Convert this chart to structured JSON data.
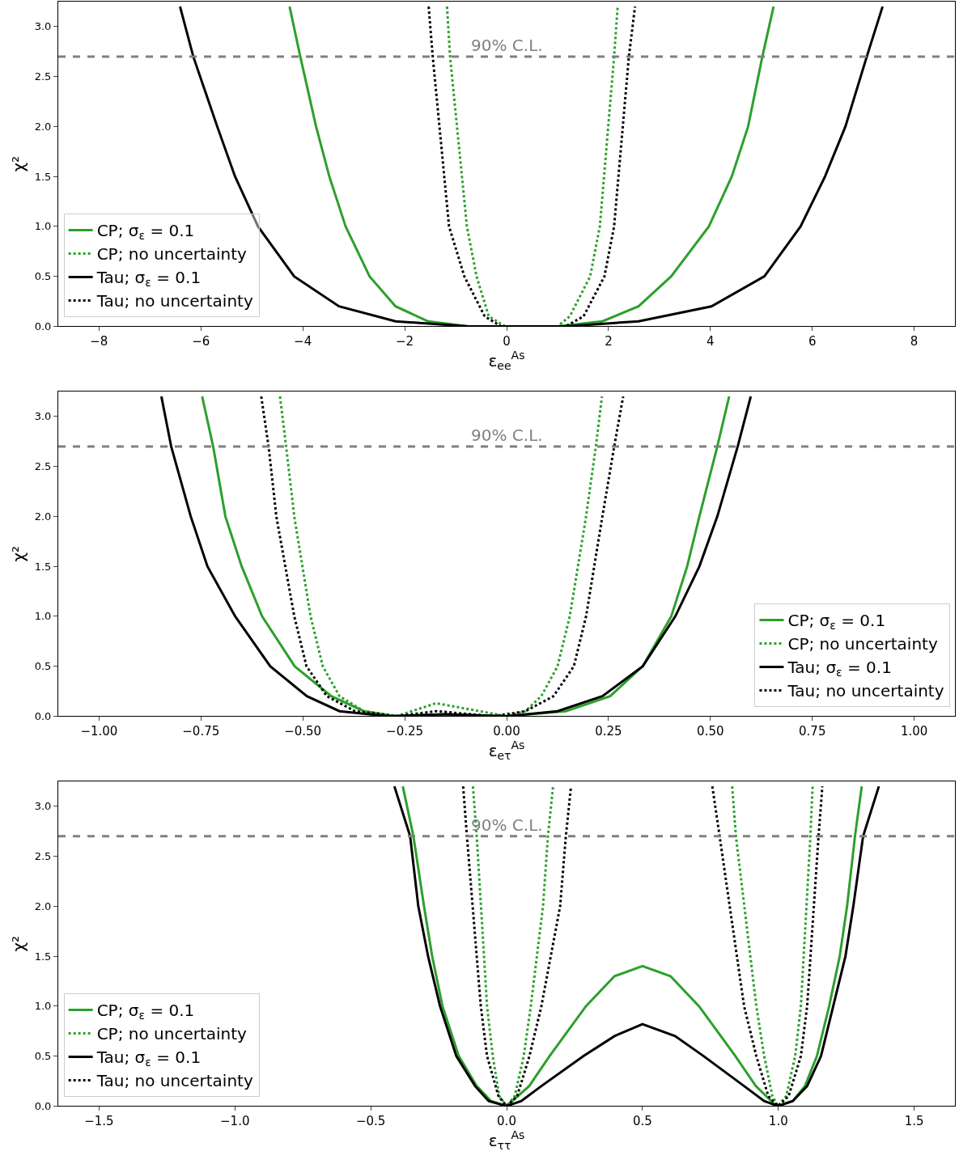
{
  "chart_data": [
    {
      "type": "line",
      "xlabel": "ε$_{ee}$$^{As}$",
      "ylabel": "χ²",
      "xlim": [
        -8.8,
        8.8
      ],
      "ylim": [
        0,
        3.25
      ],
      "xticks": [
        {
          "value": -8,
          "label": "−8"
        },
        {
          "value": -6,
          "label": "−6"
        },
        {
          "value": -4,
          "label": "−4"
        },
        {
          "value": -2,
          "label": "−2"
        },
        0,
        2,
        4,
        6,
        8
      ],
      "yticks": [
        {
          "value": 0,
          "label": "0.0"
        },
        0.5,
        {
          "value": 1,
          "label": "1.0"
        },
        1.5,
        {
          "value": 2,
          "label": "2.0"
        },
        2.5,
        {
          "value": 3,
          "label": "3.0"
        }
      ],
      "legend": "bottom left",
      "ref_lines": [
        {
          "axis": "y",
          "value": 2.7,
          "label": "90% C.L.",
          "color": "#808080",
          "line_style": "dashed"
        }
      ],
      "series": [
        {
          "name": "CP; σ$_{ε}$ = 0.1",
          "color": "#2ca02c",
          "line_style": "solid",
          "x": [
            -4.26,
            -4.05,
            -3.74,
            -3.48,
            -3.16,
            -2.69,
            -2.18,
            -1.54,
            -0.75,
            1.0,
            1.88,
            2.59,
            3.23,
            3.97,
            4.42,
            4.74,
            5.02,
            5.24
          ],
          "values": [
            3.2,
            2.7,
            2.0,
            1.5,
            1.0,
            0.5,
            0.2,
            0.05,
            0,
            0,
            0.05,
            0.2,
            0.5,
            1.0,
            1.5,
            2.0,
            2.7,
            3.2
          ]
        },
        {
          "name": "CP; no uncertainty",
          "color": "#2ca02c",
          "line_style": "dotted",
          "x": [
            -1.17,
            -1.11,
            -0.78,
            -0.59,
            -0.35,
            -0.03,
            1.0,
            1.24,
            1.64,
            1.83,
            2.11,
            2.18
          ],
          "values": [
            3.2,
            2.7,
            1.0,
            0.5,
            0.1,
            0,
            0,
            0.1,
            0.5,
            1.0,
            2.7,
            3.2
          ]
        },
        {
          "name": "Tau; σ$_{ε}$ = 0.1",
          "color": "#000000",
          "line_style": "solid",
          "x": [
            -6.41,
            -6.15,
            -5.68,
            -5.33,
            -4.88,
            -4.17,
            -3.29,
            -2.18,
            -0.75,
            1.16,
            2.59,
            4.02,
            5.06,
            5.77,
            6.25,
            6.65,
            7.07,
            7.38
          ],
          "values": [
            3.2,
            2.7,
            2.0,
            1.5,
            1.0,
            0.5,
            0.2,
            0.05,
            0,
            0,
            0.05,
            0.2,
            0.5,
            1.0,
            1.5,
            2.0,
            2.7,
            3.2
          ]
        },
        {
          "name": "Tau; no uncertainty",
          "color": "#000000",
          "line_style": "dotted",
          "x": [
            -1.53,
            -1.45,
            -1.13,
            -0.83,
            -0.43,
            -0.11,
            1.16,
            1.51,
            1.92,
            2.11,
            2.4,
            2.52
          ],
          "values": [
            3.2,
            2.7,
            1.0,
            0.5,
            0.1,
            0,
            0,
            0.1,
            0.5,
            1.0,
            2.7,
            3.2
          ]
        }
      ]
    },
    {
      "type": "line",
      "xlabel": "ε$_{eτ}$$^{As}$",
      "ylabel": "χ²",
      "xlim": [
        -1.1,
        1.1
      ],
      "ylim": [
        0,
        3.25
      ],
      "xticks": [
        {
          "value": -1,
          "label": "−1.00"
        },
        {
          "value": -0.75,
          "label": "−0.75"
        },
        {
          "value": -0.5,
          "label": "−0.50"
        },
        {
          "value": -0.25,
          "label": "−0.25"
        },
        {
          "value": 0,
          "label": "0.00"
        },
        {
          "value": 0.25,
          "label": "0.25"
        },
        {
          "value": 0.5,
          "label": "0.50"
        },
        {
          "value": 0.75,
          "label": "0.75"
        },
        {
          "value": 1,
          "label": "1.00"
        }
      ],
      "yticks": [
        {
          "value": 0,
          "label": "0.0"
        },
        0.5,
        {
          "value": 1,
          "label": "1.0"
        },
        1.5,
        {
          "value": 2,
          "label": "2.0"
        },
        2.5,
        {
          "value": 3,
          "label": "3.0"
        }
      ],
      "legend": "bottom right",
      "ref_lines": [
        {
          "axis": "y",
          "value": 2.7,
          "label": "90% C.L.",
          "color": "#808080",
          "line_style": "dashed"
        }
      ],
      "series": [
        {
          "name": "CP; σ$_{ε}$ = 0.1",
          "color": "#2ca02c",
          "line_style": "solid",
          "x": [
            -0.747,
            -0.72,
            -0.69,
            -0.65,
            -0.6,
            -0.52,
            -0.43,
            -0.35,
            -0.27,
            -0.15,
            0,
            0.145,
            0.254,
            0.334,
            0.404,
            0.443,
            0.473,
            0.517,
            0.546
          ],
          "values": [
            3.2,
            2.7,
            2.0,
            1.5,
            1.0,
            0.5,
            0.2,
            0.05,
            0,
            0.02,
            0,
            0.05,
            0.2,
            0.5,
            1.0,
            1.5,
            2.0,
            2.7,
            3.2
          ]
        },
        {
          "name": "CP; no uncertainty",
          "color": "#2ca02c",
          "line_style": "dotted",
          "x": [
            -0.556,
            -0.541,
            -0.521,
            -0.481,
            -0.451,
            -0.41,
            -0.35,
            -0.27,
            -0.173,
            0,
            0.046,
            0.085,
            0.125,
            0.155,
            0.195,
            0.219,
            0.234
          ],
          "values": [
            3.2,
            2.7,
            2.0,
            1.0,
            0.5,
            0.2,
            0.05,
            0,
            0.13,
            0,
            0.05,
            0.2,
            0.5,
            1.0,
            2.0,
            2.7,
            3.2
          ]
        },
        {
          "name": "Tau; σ$_{ε}$ = 0.1",
          "color": "#000000",
          "line_style": "solid",
          "x": [
            -0.847,
            -0.823,
            -0.775,
            -0.734,
            -0.666,
            -0.58,
            -0.49,
            -0.41,
            -0.29,
            -0.15,
            0,
            0.125,
            0.235,
            0.334,
            0.414,
            0.473,
            0.517,
            0.567,
            0.599
          ],
          "values": [
            3.2,
            2.7,
            2.0,
            1.5,
            1.0,
            0.5,
            0.2,
            0.05,
            0,
            0.02,
            0,
            0.05,
            0.2,
            0.5,
            1.0,
            1.5,
            2.0,
            2.7,
            3.2
          ]
        },
        {
          "name": "Tau; no uncertainty",
          "color": "#000000",
          "line_style": "dotted",
          "x": [
            -0.602,
            -0.584,
            -0.565,
            -0.521,
            -0.491,
            -0.441,
            -0.372,
            -0.27,
            -0.173,
            -0.03,
            0.046,
            0.115,
            0.165,
            0.195,
            0.235,
            0.264,
            0.286
          ],
          "values": [
            3.2,
            2.7,
            2.0,
            1.0,
            0.5,
            0.2,
            0.05,
            0,
            0.05,
            0,
            0.05,
            0.2,
            0.5,
            1.0,
            2.0,
            2.7,
            3.2
          ]
        }
      ]
    },
    {
      "type": "line",
      "xlabel": "ε$_{ττ}$$^{As}$",
      "ylabel": "χ²",
      "xlim": [
        -1.65,
        1.65
      ],
      "ylim": [
        0,
        3.25
      ],
      "xticks": [
        {
          "value": -1.5,
          "label": "−1.5"
        },
        {
          "value": -1,
          "label": "−1.0"
        },
        {
          "value": -0.5,
          "label": "−0.5"
        },
        {
          "value": 0,
          "label": "0.0"
        },
        0.5,
        {
          "value": 1,
          "label": "1.0"
        },
        1.5
      ],
      "yticks": [
        {
          "value": 0,
          "label": "0.0"
        },
        0.5,
        {
          "value": 1,
          "label": "1.0"
        },
        1.5,
        {
          "value": 2,
          "label": "2.0"
        },
        2.5,
        {
          "value": 3,
          "label": "3.0"
        }
      ],
      "legend": "bottom left",
      "ref_lines": [
        {
          "axis": "y",
          "value": 2.7,
          "label": "90% C.L.",
          "color": "#808080",
          "line_style": "dashed"
        }
      ],
      "series": [
        {
          "name": "CP; σ$_{ε}$ = 0.1",
          "color": "#2ca02c",
          "line_style": "solid",
          "x": [
            -0.382,
            -0.343,
            -0.304,
            -0.274,
            -0.236,
            -0.176,
            -0.11,
            -0.057,
            0,
            0.083,
            0.158,
            0.292,
            0.397,
            0.5,
            0.603,
            0.708,
            0.842,
            0.917,
            0.993,
            1.053,
            1.098,
            1.142,
            1.187,
            1.226,
            1.253,
            1.282,
            1.307
          ],
          "values": [
            3.2,
            2.7,
            2.0,
            1.5,
            1.0,
            0.5,
            0.2,
            0.05,
            0,
            0.2,
            0.5,
            1.0,
            1.3,
            1.4,
            1.3,
            1.0,
            0.5,
            0.2,
            0,
            0.05,
            0.2,
            0.5,
            1.0,
            1.5,
            2.0,
            2.7,
            3.2
          ]
        },
        {
          "name": "CP; no uncertainty",
          "color": "#2ca02c",
          "line_style": "dotted",
          "x": [
            -0.124,
            -0.11,
            -0.072,
            -0.051,
            -0.027,
            0,
            0.03,
            0.063,
            0.089,
            0.134,
            0.152,
            0.171,
            null,
            0.83,
            0.844,
            0.919,
            0.948,
            0.978,
            0.999,
            1.029,
            1.062,
            1.083,
            1.118,
            1.126
          ],
          "values": [
            3.2,
            2.7,
            1.0,
            0.5,
            0.1,
            0,
            0.1,
            0.5,
            1.0,
            2.0,
            2.7,
            3.2,
            null,
            3.2,
            2.7,
            1.0,
            0.5,
            0.1,
            0,
            0.1,
            0.5,
            1.0,
            2.7,
            3.2
          ]
        },
        {
          "name": "Tau; σ$_{ε}$ = 0.1",
          "color": "#000000",
          "line_style": "solid",
          "x": [
            -0.413,
            -0.355,
            -0.325,
            -0.289,
            -0.245,
            -0.185,
            -0.116,
            -0.066,
            0,
            0.054,
            0.128,
            0.283,
            0.397,
            0.5,
            0.62,
            0.725,
            0.874,
            0.948,
            0.999,
            1.053,
            1.106,
            1.157,
            1.202,
            1.247,
            1.276,
            1.312,
            1.37
          ],
          "values": [
            3.2,
            2.7,
            2.0,
            1.5,
            1.0,
            0.5,
            0.2,
            0.05,
            0,
            0.05,
            0.2,
            0.5,
            0.7,
            0.82,
            0.7,
            0.5,
            0.2,
            0.05,
            0,
            0.05,
            0.2,
            0.5,
            1.0,
            1.5,
            2.0,
            2.7,
            3.2
          ]
        },
        {
          "name": "Tau; no uncertainty",
          "color": "#000000",
          "line_style": "dotted",
          "x": [
            -0.16,
            -0.146,
            -0.095,
            -0.072,
            -0.03,
            0,
            0.039,
            0.084,
            0.128,
            0.197,
            0.218,
            0.237,
            null,
            0.757,
            0.784,
            0.874,
            0.919,
            0.963,
            0.999,
            1.038,
            1.083,
            1.106,
            1.148,
            1.162
          ],
          "values": [
            3.2,
            2.7,
            1.0,
            0.5,
            0.1,
            0,
            0.1,
            0.5,
            1.0,
            2.0,
            2.7,
            3.2,
            null,
            3.2,
            2.7,
            1.0,
            0.5,
            0.1,
            0,
            0.1,
            0.5,
            1.0,
            2.7,
            3.2
          ]
        }
      ]
    }
  ]
}
